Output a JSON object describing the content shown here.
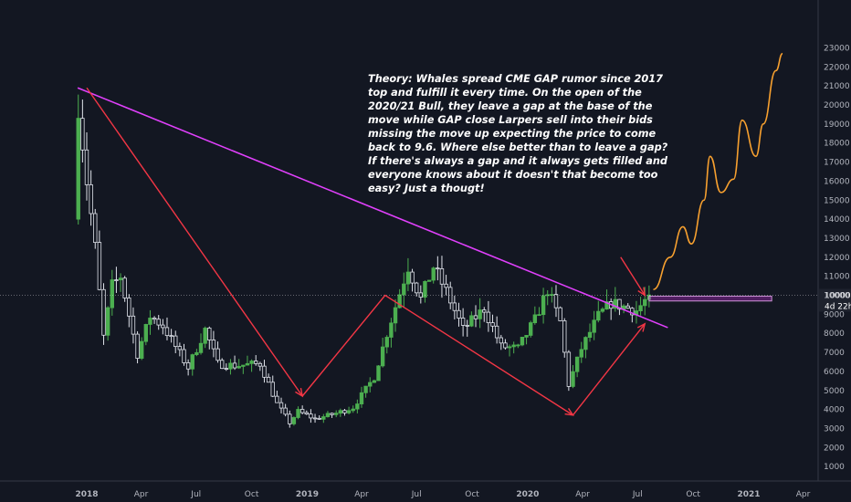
{
  "chart_data": {
    "type": "candlestick",
    "x_axis": {
      "ticks": [
        "2018",
        "Apr",
        "Jul",
        "Oct",
        "2019",
        "Apr",
        "Jul",
        "Oct",
        "2020",
        "Apr",
        "Jul",
        "Oct",
        "2021",
        "Apr"
      ],
      "year_ticks": [
        "2018",
        "2019",
        "2020",
        "2021"
      ]
    },
    "y_axis": {
      "ticks": [
        1000,
        2000,
        3000,
        4000,
        5000,
        6000,
        7000,
        8000,
        9000,
        10000,
        11000,
        12000,
        13000,
        14000,
        15000,
        16000,
        17000,
        18000,
        19000,
        20000,
        21000,
        22000,
        23000
      ],
      "range": [
        1000,
        23000
      ],
      "position": "right"
    },
    "current_price": {
      "value": "10000",
      "countdown": "4d 22h",
      "level": 10000
    },
    "annotation": {
      "lines": [
        "Theory:  Whales spread CME GAP rumor since 2017",
        "top and fulfill it every time. On the open of the",
        "2020/21 Bull, they leave a gap at the base of the",
        "move while GAP close Larpers sell into their bids",
        "missing the move up expecting the price to come",
        "back to 9.6. Where else better than to leave a gap?",
        "If there's always a gap and it always gets filled and",
        "everyone knows about it doesn't that become too",
        "easy? Just a thougt!"
      ]
    },
    "gap_zone": {
      "from": 9700,
      "to": 9950
    },
    "trendline": {
      "color": "#e040fb",
      "from": {
        "date": "2017-12-17",
        "price": 20900
      },
      "to": {
        "date": "2020-08-20",
        "price": 8300
      }
    },
    "projection": {
      "color": "#f7a02f",
      "points": [
        [
          "2020-07-27",
          10300
        ],
        [
          "2020-08-24",
          12000
        ],
        [
          "2020-09-14",
          13600
        ],
        [
          "2020-09-28",
          12700
        ],
        [
          "2020-10-19",
          15000
        ],
        [
          "2020-10-29",
          17300
        ],
        [
          "2020-11-16",
          15400
        ],
        [
          "2020-12-07",
          16100
        ],
        [
          "2020-12-21",
          19200
        ],
        [
          "2021-01-13",
          17300
        ],
        [
          "2021-01-25",
          19000
        ],
        [
          "2021-02-15",
          21800
        ],
        [
          "2021-02-26",
          22700
        ]
      ]
    },
    "colors": {
      "up": "#4caf50",
      "down": "#e0e3eb",
      "arrows": "#f23645",
      "gap": "#9c27b0"
    }
  }
}
